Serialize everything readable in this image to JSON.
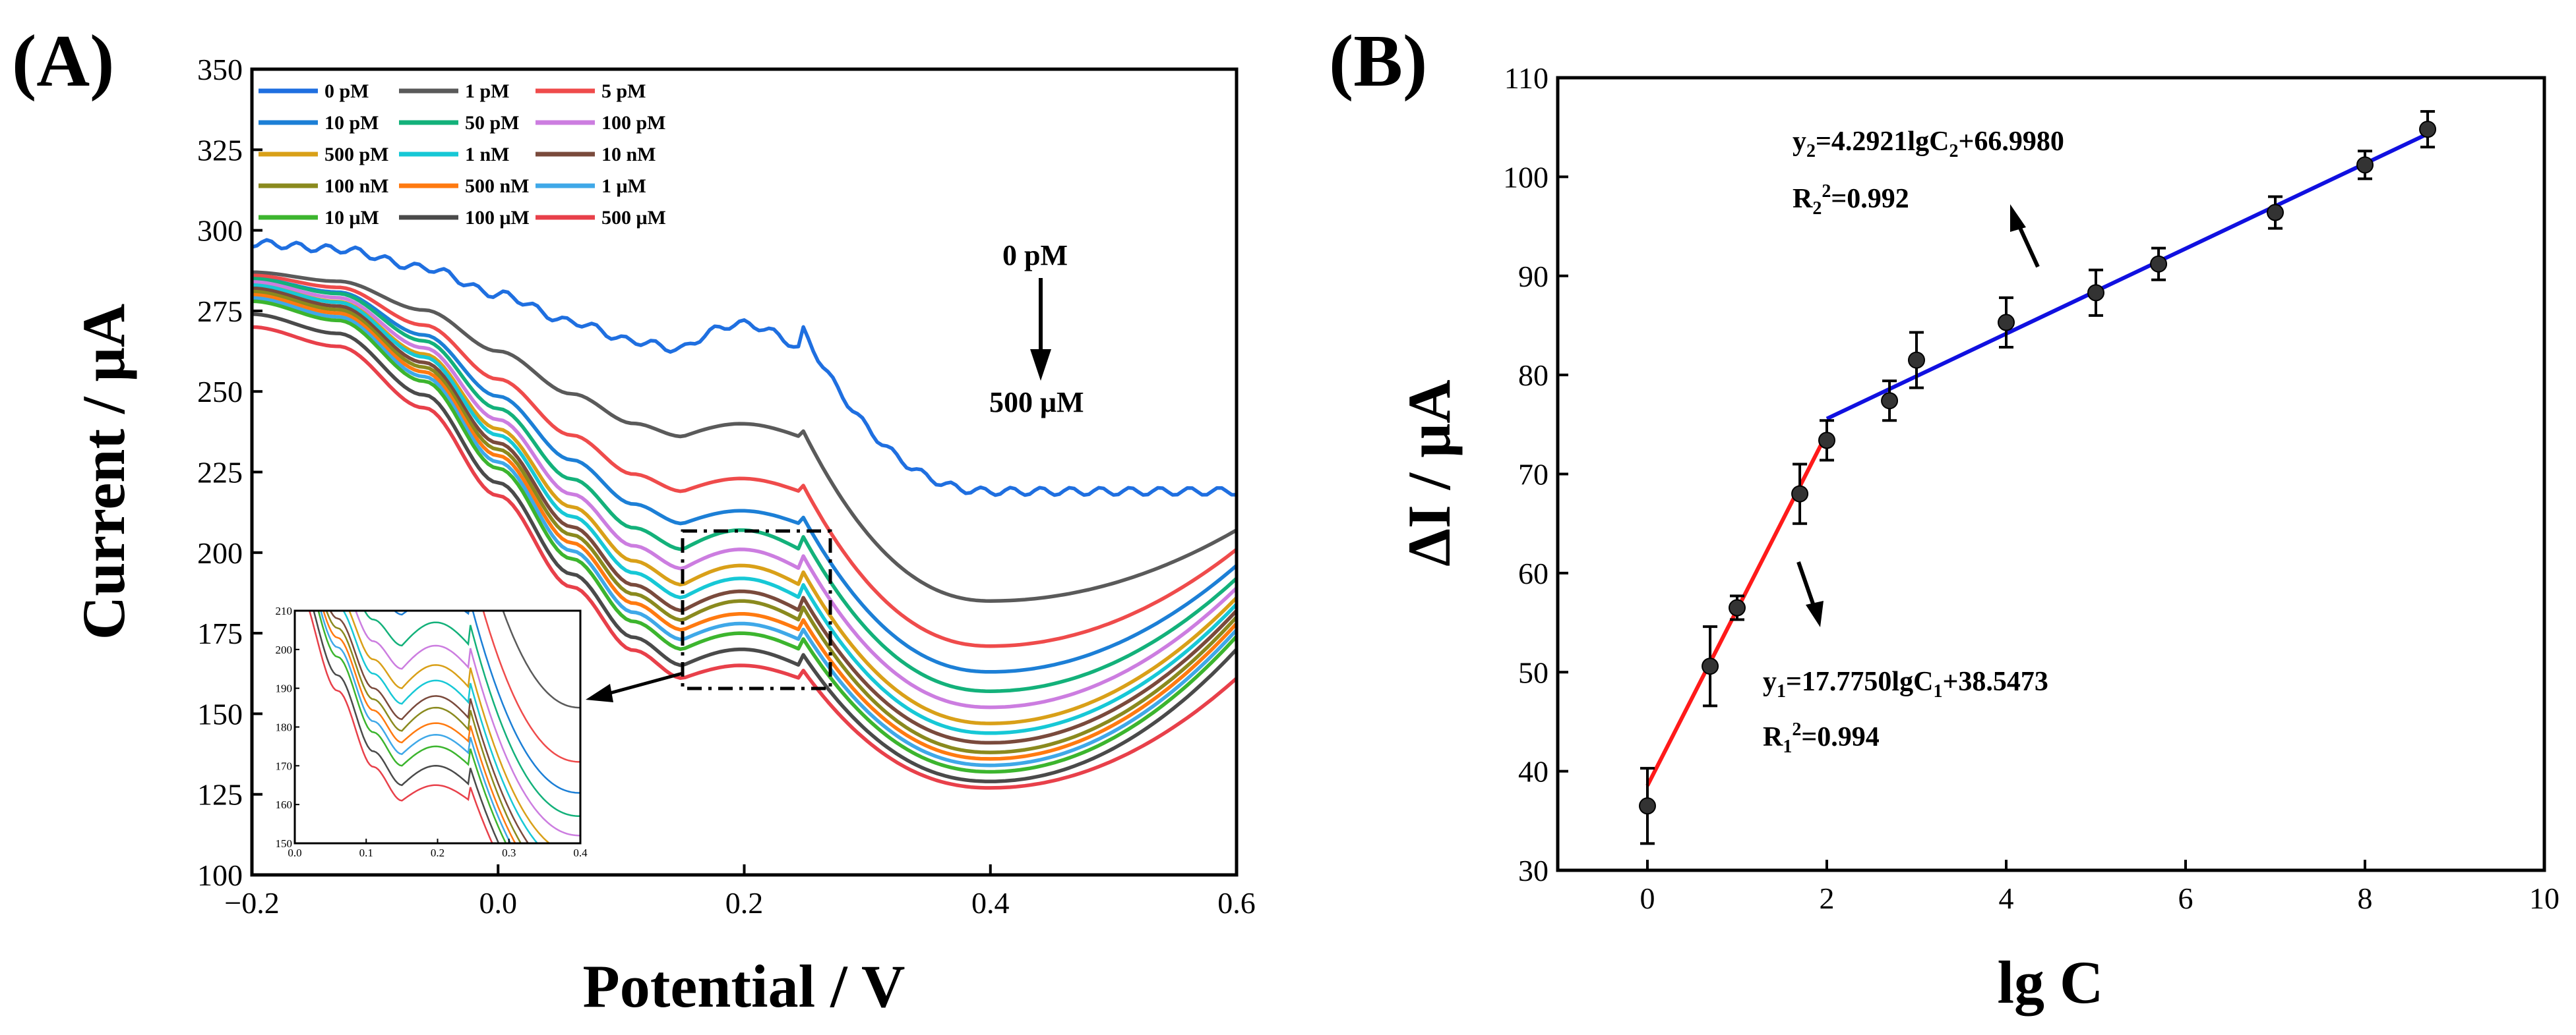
{
  "chart_data": [
    {
      "panel_label": "(A)",
      "type": "line",
      "xlabel": "Potential / V",
      "ylabel": "Current / μA",
      "xlim": [
        -0.2,
        0.6
      ],
      "ylim": [
        100,
        350
      ],
      "x_ticks": [
        -0.2,
        0.0,
        0.2,
        0.4,
        0.6
      ],
      "x_tick_labels": [
        "−0.2",
        "0.0",
        "0.2",
        "0.4",
        "0.6"
      ],
      "y_ticks": [
        100,
        125,
        150,
        175,
        200,
        225,
        250,
        275,
        300,
        325,
        350
      ],
      "y_tick_labels": [
        "100",
        "125",
        "150",
        "175",
        "200",
        "225",
        "250",
        "275",
        "300",
        "325",
        "350"
      ],
      "legend_position": "top-left",
      "annotation_top": "0 pM",
      "annotation_bottom": "500 μM",
      "series": [
        {
          "name": "0 pM",
          "color": "#1f6fe0",
          "start": 296,
          "valley": 263,
          "peak": 271,
          "min": 219,
          "end": 219,
          "wave": true
        },
        {
          "name": "1 pM",
          "color": "#5a5a5a",
          "start": 287,
          "valley": 236,
          "peak": 240,
          "min": 185,
          "end": 207
        },
        {
          "name": "5 pM",
          "color": "#ef4b4b",
          "start": 286,
          "valley": 219,
          "peak": 223,
          "min": 171,
          "end": 201
        },
        {
          "name": "10 pM",
          "color": "#1c7fd6",
          "start": 285,
          "valley": 209,
          "peak": 213,
          "min": 163,
          "end": 196
        },
        {
          "name": "50 pM",
          "color": "#13b17a",
          "start": 285,
          "valley": 201,
          "peak": 207,
          "min": 157,
          "end": 192
        },
        {
          "name": "100 pM",
          "color": "#cc7de0",
          "start": 284,
          "valley": 195,
          "peak": 201,
          "min": 152,
          "end": 189
        },
        {
          "name": "500 pM",
          "color": "#d9a018",
          "start": 283,
          "valley": 190,
          "peak": 196,
          "min": 147,
          "end": 186
        },
        {
          "name": "1 nM",
          "color": "#17c8d6",
          "start": 283,
          "valley": 186,
          "peak": 192,
          "min": 144,
          "end": 184
        },
        {
          "name": "10 nM",
          "color": "#7a4a3c",
          "start": 282,
          "valley": 182,
          "peak": 188,
          "min": 141,
          "end": 182
        },
        {
          "name": "100 nM",
          "color": "#8a8a1e",
          "start": 281,
          "valley": 179,
          "peak": 185,
          "min": 138,
          "end": 180
        },
        {
          "name": "500 nM",
          "color": "#ff7a10",
          "start": 280,
          "valley": 176,
          "peak": 181,
          "min": 136,
          "end": 178
        },
        {
          "name": "1 μM",
          "color": "#3fa8e8",
          "start": 279,
          "valley": 173,
          "peak": 178,
          "min": 134,
          "end": 176
        },
        {
          "name": "10 μM",
          "color": "#3cb52e",
          "start": 278,
          "valley": 170,
          "peak": 175,
          "min": 132,
          "end": 174
        },
        {
          "name": "100 μM",
          "color": "#4a4a4a",
          "start": 274,
          "valley": 165,
          "peak": 170,
          "min": 129,
          "end": 170
        },
        {
          "name": "500 μM",
          "color": "#e8404a",
          "start": 270,
          "valley": 161,
          "peak": 165,
          "min": 127,
          "end": 161
        }
      ],
      "inset": {
        "xlim": [
          0.0,
          0.4
        ],
        "ylim": [
          150,
          210
        ],
        "x_tick_labels": [
          "0.0",
          "0.1",
          "0.2",
          "0.3",
          "0.4"
        ],
        "y_tick_labels": [
          "150",
          "160",
          "170",
          "180",
          "190",
          "200",
          "210"
        ],
        "zoom_box_x": [
          0.15,
          0.27
        ],
        "zoom_box_y": [
          157,
          207
        ]
      }
    },
    {
      "panel_label": "(B)",
      "type": "scatter",
      "xlabel": "lg C",
      "ylabel": "ΔI / μA",
      "xlim": [
        -1,
        10
      ],
      "ylim": [
        30,
        110
      ],
      "x_ticks": [
        0,
        2,
        4,
        6,
        8,
        10
      ],
      "x_tick_labels": [
        "0",
        "2",
        "4",
        "6",
        "8",
        "10"
      ],
      "y_ticks": [
        30,
        40,
        50,
        60,
        70,
        80,
        90,
        100,
        110
      ],
      "y_tick_labels": [
        "30",
        "40",
        "50",
        "60",
        "70",
        "80",
        "90",
        "100",
        "110"
      ],
      "points": [
        {
          "x": 0,
          "y": 36.5,
          "err": 3.8
        },
        {
          "x": 0.699,
          "y": 50.6,
          "err": 4.0
        },
        {
          "x": 1,
          "y": 56.5,
          "err": 1.2
        },
        {
          "x": 1.699,
          "y": 68.0,
          "err": 3.0
        },
        {
          "x": 2,
          "y": 73.4,
          "err": 2.0
        },
        {
          "x": 2.699,
          "y": 77.4,
          "err": 2.0
        },
        {
          "x": 3,
          "y": 81.5,
          "err": 2.8
        },
        {
          "x": 4,
          "y": 85.3,
          "err": 2.5
        },
        {
          "x": 5,
          "y": 88.3,
          "err": 2.3
        },
        {
          "x": 5.699,
          "y": 91.2,
          "err": 1.6
        },
        {
          "x": 7,
          "y": 96.4,
          "err": 1.6
        },
        {
          "x": 8,
          "y": 101.2,
          "err": 1.4
        },
        {
          "x": 8.699,
          "y": 104.8,
          "err": 1.8
        }
      ],
      "fits": [
        {
          "name": "fit1",
          "color": "#ff1a1a",
          "slope": 17.775,
          "intercept": 38.5473,
          "x_range": [
            0,
            2
          ]
        },
        {
          "name": "fit2",
          "color": "#1010e0",
          "slope": 4.2921,
          "intercept": 66.998,
          "x_range": [
            2,
            8.699
          ]
        }
      ],
      "equation_1": {
        "prefix": "y",
        "sub1": "1",
        "mid": "=17.7750lgC",
        "sub2": "1",
        "suffix": "+38.5473"
      },
      "r2_1": {
        "prefix": "R",
        "sub": "1",
        "sup": "2",
        "suffix": "=0.994"
      },
      "equation_2": {
        "prefix": "y",
        "sub1": "2",
        "mid": "=4.2921lgC",
        "sub2": "2",
        "suffix": "+66.9980"
      },
      "r2_2": {
        "prefix": "R",
        "sub": "2",
        "sup": "2",
        "suffix": "=0.992"
      }
    }
  ]
}
